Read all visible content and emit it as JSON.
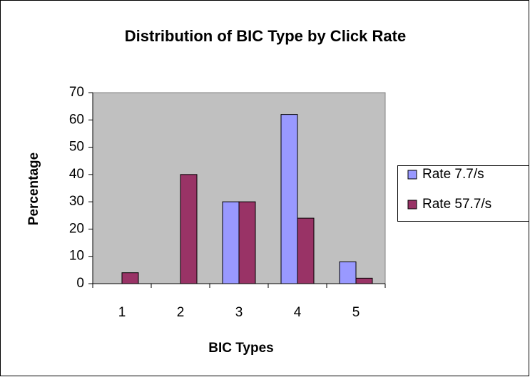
{
  "chart_data": {
    "type": "bar",
    "title": "Distribution of BIC Type by Click Rate",
    "x_label": "BIC Types",
    "y_label": "Percentage",
    "categories": [
      "1",
      "2",
      "3",
      "4",
      "5"
    ],
    "series": [
      {
        "name": "Rate 7.7/s",
        "color": "#9999ff",
        "values": [
          0,
          0,
          30,
          62,
          8
        ]
      },
      {
        "name": "Rate 57.7/s",
        "color": "#993366",
        "values": [
          4,
          40,
          30,
          24,
          2
        ]
      }
    ],
    "ylim": [
      0,
      70
    ],
    "yticks": [
      0,
      10,
      20,
      30,
      40,
      50,
      60,
      70
    ],
    "grid": false,
    "legend": "right"
  }
}
